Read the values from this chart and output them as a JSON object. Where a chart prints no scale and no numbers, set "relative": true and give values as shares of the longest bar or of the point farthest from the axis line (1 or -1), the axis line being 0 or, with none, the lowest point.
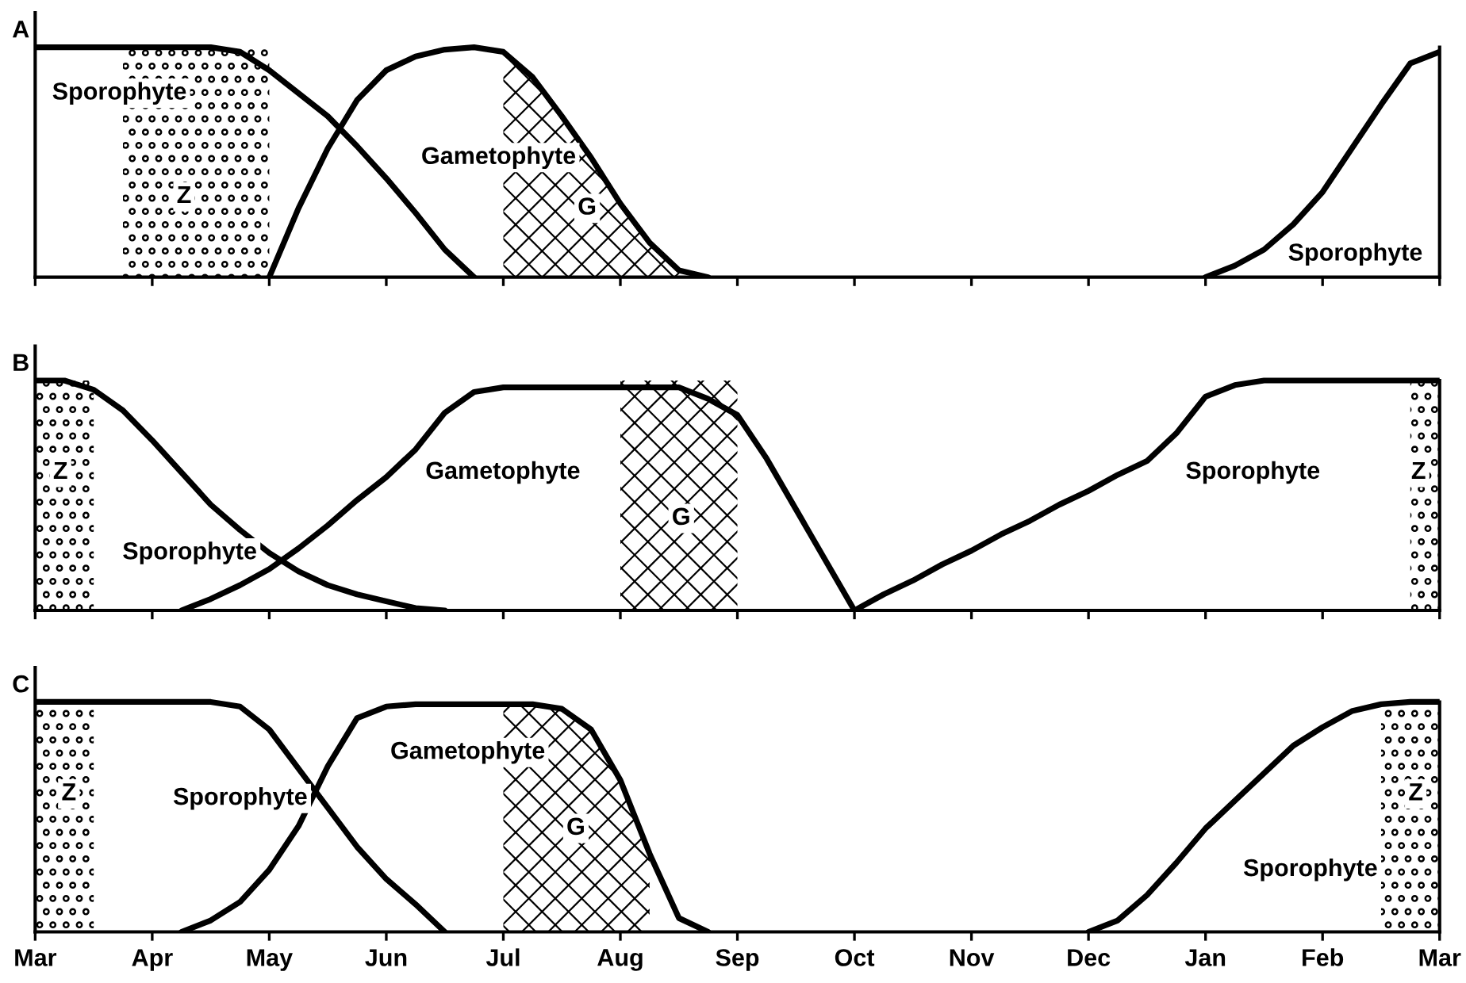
{
  "chart_data": [
    {
      "type": "line",
      "title": "A",
      "relative": true,
      "categories": [
        null,
        null,
        null,
        null,
        null,
        null,
        null,
        null,
        null,
        null,
        null,
        null,
        null,
        null,
        null,
        null,
        null,
        null,
        null,
        null,
        null,
        null,
        null,
        null,
        null,
        null,
        null,
        null,
        null,
        null,
        null,
        null,
        null,
        null,
        null,
        null,
        null,
        null,
        null,
        null,
        null,
        null,
        null,
        null,
        null,
        null,
        null,
        null,
        null
      ],
      "grid": false,
      "legend": false,
      "marker": "none",
      "line_style": "solid",
      "series": [
        {
          "name": "Sporophyte",
          "color": "#000000",
          "values": [
            1,
            1,
            1,
            1,
            1,
            1,
            1,
            0.98,
            0.9,
            0.8,
            0.7,
            0.57,
            0.43,
            0.28,
            0.12,
            0,
            null,
            null,
            null,
            null,
            null,
            null,
            null,
            null,
            null,
            null,
            null,
            null,
            null,
            null,
            null,
            null,
            null,
            null,
            null,
            null,
            null,
            null,
            null,
            null,
            null,
            null,
            null,
            null,
            null,
            null,
            null,
            null,
            null
          ]
        },
        {
          "name": "Gametophyte",
          "color": "#000000",
          "values": [
            null,
            null,
            null,
            null,
            null,
            null,
            null,
            null,
            0,
            0.3,
            0.56,
            0.77,
            0.9,
            0.96,
            0.99,
            1,
            0.98,
            0.87,
            0.7,
            0.52,
            0.32,
            0.15,
            0.03,
            0,
            null,
            null,
            null,
            null,
            null,
            null,
            null,
            null,
            null,
            null,
            null,
            null,
            null,
            null,
            null,
            null,
            null,
            null,
            null,
            null,
            null,
            null,
            null,
            null,
            null
          ]
        },
        {
          "name": "Sporophyte",
          "color": "#000000",
          "values": [
            null,
            null,
            null,
            null,
            null,
            null,
            null,
            null,
            null,
            null,
            null,
            null,
            null,
            null,
            null,
            null,
            null,
            null,
            null,
            null,
            null,
            null,
            null,
            null,
            null,
            null,
            null,
            null,
            null,
            null,
            null,
            null,
            null,
            null,
            null,
            null,
            null,
            null,
            null,
            null,
            0,
            0.05,
            0.12,
            0.23,
            0.37,
            0.56,
            0.75,
            0.93,
            0.98
          ]
        },
        {
          "type": "area",
          "color": "#000000",
          "values": [
            null,
            null,
            null,
            1,
            1,
            1,
            1,
            1,
            1,
            null,
            null,
            null,
            null,
            null,
            null,
            null,
            null,
            null,
            null,
            null,
            null,
            null,
            null,
            null,
            null,
            null,
            null,
            null,
            null,
            null,
            null,
            null,
            null,
            null,
            null,
            null,
            null,
            null,
            null,
            null,
            null,
            null,
            null,
            null,
            null,
            null,
            null,
            null,
            null
          ]
        },
        {
          "type": "area",
          "color": "#000000",
          "values": [
            null,
            null,
            null,
            null,
            null,
            null,
            null,
            null,
            null,
            null,
            null,
            null,
            null,
            null,
            null,
            null,
            0.98,
            0.87,
            0.7,
            0.52,
            0.32,
            0.15,
            0.03,
            0,
            null,
            null,
            null,
            null,
            null,
            null,
            null,
            null,
            null,
            null,
            null,
            null,
            null,
            null,
            null,
            null,
            null,
            null,
            null,
            null,
            null,
            null,
            null,
            null,
            null
          ]
        }
      ],
      "annotations": [
        "Z",
        "G"
      ]
    },
    {
      "type": "line",
      "title": "B",
      "relative": true,
      "categories": [
        null,
        null,
        null,
        null,
        null,
        null,
        null,
        null,
        null,
        null,
        null,
        null,
        null,
        null,
        null,
        null,
        null,
        null,
        null,
        null,
        null,
        null,
        null,
        null,
        null,
        null,
        null,
        null,
        null,
        null,
        null,
        null,
        null,
        null,
        null,
        null,
        null,
        null,
        null,
        null,
        null,
        null,
        null,
        null,
        null,
        null,
        null,
        null,
        null
      ],
      "grid": false,
      "legend": false,
      "marker": "none",
      "line_style": "solid",
      "series": [
        {
          "name": "Sporophyte",
          "color": "#000000",
          "values": [
            1,
            1,
            0.96,
            0.87,
            0.74,
            0.6,
            0.46,
            0.35,
            0.25,
            0.17,
            0.11,
            0.07,
            0.04,
            0.01,
            0,
            null,
            null,
            null,
            null,
            null,
            null,
            null,
            null,
            null,
            null,
            null,
            null,
            null,
            null,
            null,
            null,
            null,
            null,
            null,
            null,
            null,
            null,
            null,
            null,
            null,
            null,
            null,
            null,
            null,
            null,
            null,
            null,
            null,
            null
          ]
        },
        {
          "name": "Gametophyte",
          "color": "#000000",
          "values": [
            null,
            null,
            null,
            null,
            null,
            0,
            0.05,
            0.11,
            0.18,
            0.27,
            0.37,
            0.48,
            0.58,
            0.7,
            0.86,
            0.95,
            0.97,
            0.97,
            0.97,
            0.97,
            0.97,
            0.97,
            0.97,
            0.92,
            0.85,
            0.66,
            0.44,
            0.22,
            0,
            null,
            null,
            null,
            null,
            null,
            null,
            null,
            null,
            null,
            null,
            null,
            null,
            null,
            null,
            null,
            null,
            null,
            null,
            null,
            null
          ]
        },
        {
          "name": "Sporophyte",
          "color": "#000000",
          "values": [
            null,
            null,
            null,
            null,
            null,
            null,
            null,
            null,
            null,
            null,
            null,
            null,
            null,
            null,
            null,
            null,
            null,
            null,
            null,
            null,
            null,
            null,
            null,
            null,
            null,
            null,
            null,
            null,
            0,
            0.07,
            0.13,
            0.2,
            0.26,
            0.33,
            0.39,
            0.46,
            0.52,
            0.59,
            0.65,
            0.77,
            0.93,
            0.98,
            1,
            1,
            1,
            1,
            1,
            1,
            1
          ]
        },
        {
          "type": "area",
          "color": "#000000",
          "values": [
            1,
            1,
            1,
            null,
            null,
            null,
            null,
            null,
            null,
            null,
            null,
            null,
            null,
            null,
            null,
            null,
            null,
            null,
            null,
            null,
            null,
            null,
            null,
            null,
            null,
            null,
            null,
            null,
            null,
            null,
            null,
            null,
            null,
            null,
            null,
            null,
            null,
            null,
            null,
            null,
            null,
            null,
            null,
            null,
            null,
            null,
            null,
            null,
            null
          ]
        },
        {
          "type": "area",
          "color": "#000000",
          "values": [
            null,
            null,
            null,
            null,
            null,
            null,
            null,
            null,
            null,
            null,
            null,
            null,
            null,
            null,
            null,
            null,
            null,
            null,
            null,
            null,
            1,
            1,
            1,
            1,
            1,
            null,
            null,
            null,
            null,
            null,
            null,
            null,
            null,
            null,
            null,
            null,
            null,
            null,
            null,
            null,
            null,
            null,
            null,
            null,
            null,
            null,
            null,
            null,
            null
          ]
        },
        {
          "type": "area",
          "color": "#000000",
          "values": [
            null,
            null,
            null,
            null,
            null,
            null,
            null,
            null,
            null,
            null,
            null,
            null,
            null,
            null,
            null,
            null,
            null,
            null,
            null,
            null,
            null,
            null,
            null,
            null,
            null,
            null,
            null,
            null,
            null,
            null,
            null,
            null,
            null,
            null,
            null,
            null,
            null,
            null,
            null,
            null,
            null,
            null,
            null,
            null,
            null,
            null,
            null,
            1,
            1
          ]
        }
      ],
      "annotations": [
        "Z",
        "G",
        "Z"
      ]
    },
    {
      "type": "line",
      "title": "C",
      "relative": true,
      "categories": [
        "Mar",
        null,
        null,
        null,
        "Apr",
        null,
        null,
        null,
        "May",
        null,
        null,
        null,
        "Jun",
        null,
        null,
        null,
        "Jul",
        null,
        null,
        null,
        "Aug",
        null,
        null,
        null,
        "Sep",
        null,
        null,
        null,
        "Oct",
        null,
        null,
        null,
        "Nov",
        null,
        null,
        null,
        "Dec",
        null,
        null,
        null,
        "Jan",
        null,
        null,
        null,
        "Feb",
        null,
        null,
        null,
        "Mar"
      ],
      "grid": false,
      "legend": false,
      "marker": "none",
      "line_style": "solid",
      "series": [
        {
          "name": "Sporophyte",
          "color": "#000000",
          "values": [
            1,
            1,
            1,
            1,
            1,
            1,
            1,
            0.98,
            0.88,
            0.71,
            0.54,
            0.37,
            0.23,
            0.12,
            0,
            null,
            null,
            null,
            null,
            null,
            null,
            null,
            null,
            null,
            null,
            null,
            null,
            null,
            null,
            null,
            null,
            null,
            null,
            null,
            null,
            null,
            null,
            null,
            null,
            null,
            null,
            null,
            null,
            null,
            null,
            null,
            null,
            null,
            null
          ]
        },
        {
          "name": "Gametophyte",
          "color": "#000000",
          "values": [
            null,
            null,
            null,
            null,
            null,
            0,
            0.05,
            0.13,
            0.27,
            0.46,
            0.72,
            0.93,
            0.98,
            0.99,
            0.99,
            0.99,
            0.99,
            0.99,
            0.97,
            0.88,
            0.66,
            0.34,
            0.06,
            0,
            null,
            null,
            null,
            null,
            null,
            null,
            null,
            null,
            null,
            null,
            null,
            null,
            null,
            null,
            null,
            null,
            null,
            null,
            null,
            null,
            null,
            null,
            null,
            null,
            null
          ]
        },
        {
          "name": "Sporophyte",
          "color": "#000000",
          "values": [
            null,
            null,
            null,
            null,
            null,
            null,
            null,
            null,
            null,
            null,
            null,
            null,
            null,
            null,
            null,
            null,
            null,
            null,
            null,
            null,
            null,
            null,
            null,
            null,
            null,
            null,
            null,
            null,
            null,
            null,
            null,
            null,
            null,
            null,
            null,
            null,
            0,
            0.05,
            0.16,
            0.3,
            0.45,
            0.57,
            0.69,
            0.81,
            0.89,
            0.96,
            0.99,
            1,
            1
          ]
        },
        {
          "type": "area",
          "color": "#000000",
          "values": [
            1,
            1,
            1,
            null,
            null,
            null,
            null,
            null,
            null,
            null,
            null,
            null,
            null,
            null,
            null,
            null,
            null,
            null,
            null,
            null,
            null,
            null,
            null,
            null,
            null,
            null,
            null,
            null,
            null,
            null,
            null,
            null,
            null,
            null,
            null,
            null,
            null,
            null,
            null,
            null,
            null,
            null,
            null,
            null,
            null,
            null,
            null,
            null,
            null
          ]
        },
        {
          "type": "area",
          "color": "#000000",
          "values": [
            null,
            null,
            null,
            null,
            null,
            null,
            null,
            null,
            null,
            null,
            null,
            null,
            null,
            null,
            null,
            null,
            0.99,
            0.99,
            0.97,
            0.88,
            0.66,
            0.34,
            null,
            null,
            null,
            null,
            null,
            null,
            null,
            null,
            null,
            null,
            null,
            null,
            null,
            null,
            null,
            null,
            null,
            null,
            null,
            null,
            null,
            null,
            null,
            null,
            null,
            null,
            null
          ]
        },
        {
          "type": "area",
          "color": "#000000",
          "values": [
            null,
            null,
            null,
            null,
            null,
            null,
            null,
            null,
            null,
            null,
            null,
            null,
            null,
            null,
            null,
            null,
            null,
            null,
            null,
            null,
            null,
            null,
            null,
            null,
            null,
            null,
            null,
            null,
            null,
            null,
            null,
            null,
            null,
            null,
            null,
            null,
            null,
            null,
            null,
            null,
            null,
            null,
            null,
            null,
            null,
            null,
            1,
            1,
            1
          ]
        }
      ],
      "annotations": [
        "Z",
        "G",
        "Z"
      ]
    }
  ]
}
